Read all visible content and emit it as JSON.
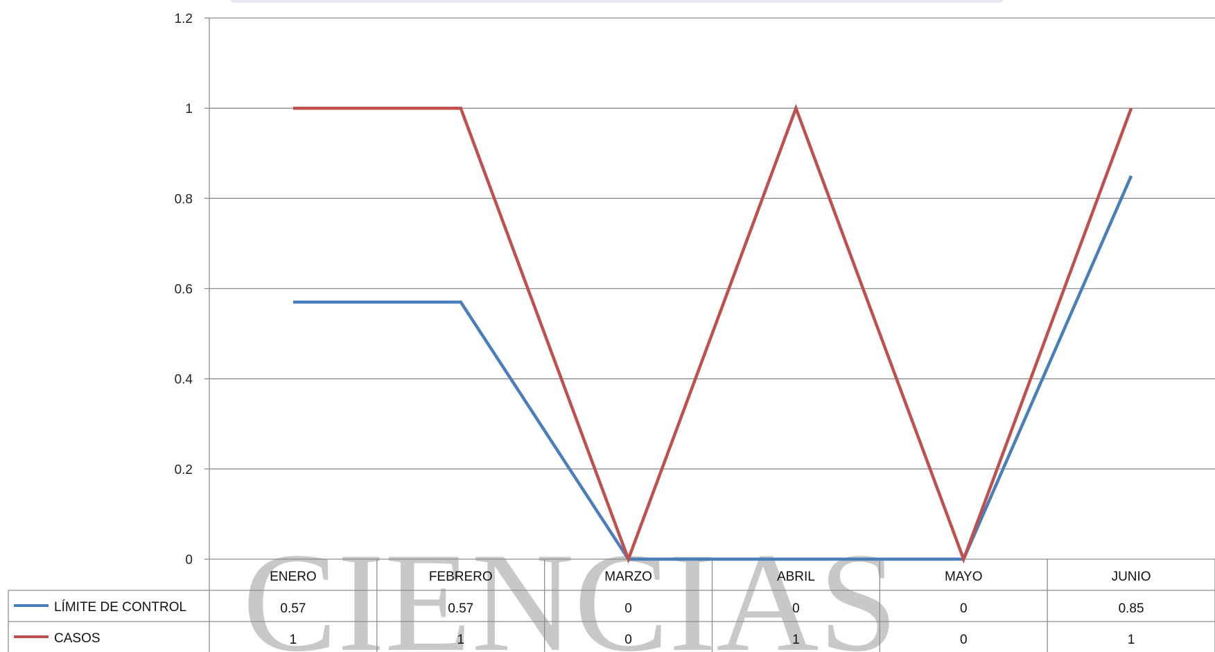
{
  "chart_data": {
    "type": "line",
    "categories": [
      "ENERO",
      "FEBRERO",
      "MARZO",
      "ABRIL",
      "MAYO",
      "JUNIO"
    ],
    "series": [
      {
        "name": "LÍMITE DE CONTROL",
        "values": [
          0.57,
          0.57,
          0,
          0,
          0,
          0.85
        ],
        "labels": [
          "0.57",
          "0.57",
          "0",
          "0",
          "0",
          "0.85"
        ],
        "color": "#4a7ebb"
      },
      {
        "name": "CASOS",
        "values": [
          1,
          1,
          0,
          1,
          0,
          1
        ],
        "labels": [
          "1",
          "1",
          "0",
          "1",
          "0",
          "1"
        ],
        "color": "#c0504d"
      }
    ],
    "y_ticks": [
      "0",
      "0.2",
      "0.4",
      "0.6",
      "0.8",
      "1",
      "1.2"
    ],
    "ylim": [
      0,
      1.2
    ],
    "grid": true,
    "legend": "data-table-bottom"
  },
  "watermark_text": "CIENCIAS"
}
